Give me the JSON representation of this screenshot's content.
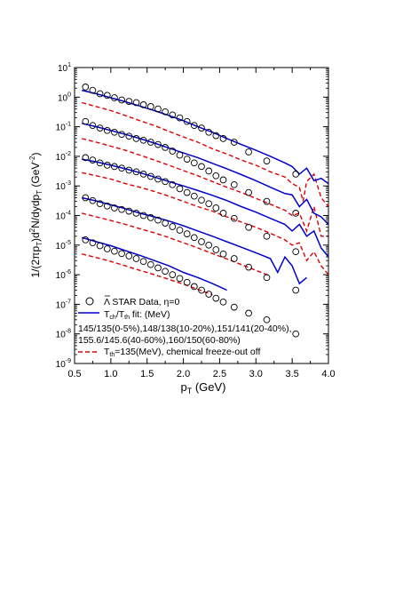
{
  "chart_data": {
    "type": "line",
    "xlabel": "p",
    "xlabel_sub": "T",
    "xlabel_unit": " (GeV)",
    "ylabel": "1/(2πp_T)d²N/dydp_T (GeV⁻²)",
    "ylabel_parts": [
      "1/(2πp",
      "T",
      ")d",
      "2",
      "N/dydp",
      "T",
      " (GeV",
      "-2",
      ")"
    ],
    "xlim": [
      0.5,
      4.0
    ],
    "ylim_log10": [
      -9,
      1
    ],
    "xticks": [
      "0.5",
      "1.0",
      "1.5",
      "2.0",
      "2.5",
      "3.0",
      "3.5",
      "4.0"
    ],
    "yticks": [
      {
        "base": "10",
        "exp": "1"
      },
      {
        "base": "10",
        "exp": "0"
      },
      {
        "base": "10",
        "exp": "-1"
      },
      {
        "base": "10",
        "exp": "-2"
      },
      {
        "base": "10",
        "exp": "-3"
      },
      {
        "base": "10",
        "exp": "-4"
      },
      {
        "base": "10",
        "exp": "-5"
      },
      {
        "base": "10",
        "exp": "-6"
      },
      {
        "base": "10",
        "exp": "-7"
      },
      {
        "base": "10",
        "exp": "-8"
      },
      {
        "base": "10",
        "exp": "-9"
      }
    ],
    "legend": {
      "data_label": "Λ̄ STAR Data, η=0",
      "data_label_main": "Λ",
      "data_label_rest": " STAR Data, η=0",
      "fit_label_pre": "T",
      "fit_sub1": "ch",
      "fit_mid": "/T",
      "fit_sub2": "th",
      "fit_post": " fit: (MeV)",
      "fit_line1": "145/135(0-5%),148/138(10-20%),151/141(20-40%),",
      "fit_line2": "155.6/145.6(40-60%),160/150(60-80%)",
      "dash_pre": "T",
      "dash_sub": "th",
      "dash_post": "=135(MeV), chemical freeze-out off"
    },
    "colors": {
      "data": "#000000",
      "fit": "#0000cc",
      "dashed": "#e00000"
    },
    "data_x": [
      0.65,
      0.75,
      0.85,
      0.95,
      1.05,
      1.15,
      1.25,
      1.35,
      1.45,
      1.55,
      1.65,
      1.75,
      1.85,
      1.95,
      2.05,
      2.15,
      2.25,
      2.35,
      2.45,
      2.55,
      2.7,
      2.9,
      3.15,
      3.55
    ],
    "series": [
      {
        "centrality": "0-5%",
        "data": [
          2.2,
          1.7,
          1.3,
          1.15,
          0.95,
          0.8,
          0.72,
          0.65,
          0.55,
          0.48,
          0.4,
          0.32,
          0.25,
          0.2,
          0.15,
          0.11,
          0.09,
          0.065,
          0.05,
          0.04,
          0.03,
          0.014,
          0.007,
          0.0025
        ],
        "fit_x": [
          0.6,
          0.8,
          1.0,
          1.2,
          1.4,
          1.6,
          1.8,
          2.0,
          2.2,
          2.4,
          2.6,
          2.8,
          3.0,
          3.2,
          3.4,
          3.5,
          3.6,
          3.7,
          3.8,
          3.9,
          4.0
        ],
        "fit": [
          1.7,
          1.3,
          0.95,
          0.7,
          0.5,
          0.35,
          0.24,
          0.16,
          0.1,
          0.065,
          0.04,
          0.025,
          0.016,
          0.01,
          0.006,
          0.0045,
          0.0025,
          0.004,
          0.0015,
          0.0018,
          0.0012
        ],
        "dash_x": [
          0.6,
          0.8,
          1.0,
          1.2,
          1.4,
          1.6,
          1.8,
          2.0,
          2.2,
          2.4,
          2.6,
          2.8,
          3.0,
          3.2,
          3.4,
          3.5,
          3.6,
          3.65,
          3.7,
          3.8,
          3.9,
          4.0
        ],
        "dash": [
          0.65,
          0.48,
          0.35,
          0.24,
          0.16,
          0.11,
          0.07,
          0.045,
          0.03,
          0.018,
          0.012,
          0.0075,
          0.005,
          0.003,
          0.002,
          0.0012,
          0.0009,
          0.0003,
          0.0014,
          0.0025,
          0.0004,
          0.0002
        ]
      },
      {
        "centrality": "10-20%",
        "data": [
          0.15,
          0.11,
          0.09,
          0.075,
          0.065,
          0.055,
          0.048,
          0.04,
          0.035,
          0.03,
          0.025,
          0.02,
          0.015,
          0.011,
          0.008,
          0.006,
          0.0045,
          0.0032,
          0.0022,
          0.0016,
          0.0011,
          0.0006,
          0.0003,
          0.00012
        ],
        "fit_x": [
          0.6,
          0.8,
          1.0,
          1.2,
          1.4,
          1.6,
          1.8,
          2.0,
          2.2,
          2.4,
          2.6,
          2.8,
          3.0,
          3.2,
          3.4,
          3.5,
          3.6,
          3.7,
          3.8,
          3.9,
          4.0
        ],
        "fit": [
          0.13,
          0.1,
          0.075,
          0.055,
          0.04,
          0.028,
          0.019,
          0.013,
          0.009,
          0.0058,
          0.0038,
          0.0024,
          0.0015,
          0.0009,
          0.00055,
          0.0005,
          0.0002,
          0.00035,
          0.00012,
          9e-05,
          5e-05
        ],
        "dash_x": [
          0.6,
          0.8,
          1.0,
          1.2,
          1.4,
          1.6,
          1.8,
          2.0,
          2.2,
          2.4,
          2.6,
          2.8,
          3.0,
          3.2,
          3.4,
          3.5,
          3.6,
          3.7,
          3.8,
          3.9,
          4.0
        ],
        "dash": [
          0.04,
          0.03,
          0.022,
          0.016,
          0.011,
          0.0075,
          0.005,
          0.0033,
          0.0022,
          0.0014,
          0.0009,
          0.0006,
          0.00038,
          0.00024,
          0.00015,
          0.0001,
          0.00012,
          3e-05,
          0.0002,
          2e-05,
          2e-05
        ]
      },
      {
        "centrality": "20-40%",
        "data": [
          0.009,
          0.0075,
          0.006,
          0.005,
          0.0045,
          0.004,
          0.0034,
          0.003,
          0.0025,
          0.0021,
          0.0017,
          0.0014,
          0.0011,
          0.0008,
          0.0006,
          0.00045,
          0.00033,
          0.00025,
          0.00018,
          0.00012,
          8e-05,
          4e-05,
          2e-05,
          6e-06
        ],
        "fit_x": [
          0.6,
          0.8,
          1.0,
          1.2,
          1.4,
          1.6,
          1.8,
          2.0,
          2.2,
          2.4,
          2.6,
          2.8,
          3.0,
          3.2,
          3.4,
          3.5,
          3.6,
          3.7,
          3.8,
          3.9,
          4.0
        ],
        "fit": [
          0.008,
          0.0065,
          0.005,
          0.0038,
          0.0028,
          0.002,
          0.0014,
          0.001,
          0.0007,
          0.00048,
          0.00032,
          0.0002,
          0.00013,
          8e-05,
          5e-05,
          3e-05,
          5e-05,
          2e-05,
          3e-05,
          8e-06,
          4e-06
        ],
        "dash_x": [
          0.6,
          0.8,
          1.0,
          1.2,
          1.4,
          1.6,
          1.8,
          2.0,
          2.2,
          2.4,
          2.6,
          2.8,
          3.0,
          3.2,
          3.4,
          3.5,
          3.6,
          3.7,
          3.8,
          3.9,
          4.0
        ],
        "dash": [
          0.0028,
          0.0022,
          0.0017,
          0.0012,
          0.0009,
          0.00065,
          0.00045,
          0.0003,
          0.0002,
          0.00014,
          9e-05,
          6e-05,
          4e-05,
          2.5e-05,
          1.5e-05,
          1e-05,
          1.2e-05,
          3e-06,
          6e-06,
          2e-06,
          1e-06
        ]
      },
      {
        "centrality": "40-60%",
        "data": [
          0.0004,
          0.00032,
          0.00025,
          0.00021,
          0.00018,
          0.00016,
          0.00014,
          0.00012,
          0.0001,
          8.5e-05,
          7e-05,
          5.5e-05,
          4.2e-05,
          3.2e-05,
          2.4e-05,
          1.8e-05,
          1.3e-05,
          1e-05,
          7e-06,
          5e-06,
          3.5e-06,
          1.8e-06,
          8e-07,
          3e-07
        ],
        "fit_x": [
          0.6,
          0.8,
          1.0,
          1.2,
          1.4,
          1.6,
          1.8,
          2.0,
          2.2,
          2.4,
          2.6,
          2.8,
          3.0,
          3.2,
          3.3,
          3.4,
          3.5,
          3.6,
          3.7
        ],
        "fit": [
          0.0004,
          0.00031,
          0.00023,
          0.00017,
          0.00012,
          9e-05,
          6.5e-05,
          4.5e-05,
          3e-05,
          2e-05,
          1.3e-05,
          8.5e-06,
          5.5e-06,
          3.5e-06,
          1.2e-06,
          4e-06,
          2e-06,
          5e-07,
          8e-07
        ],
        "dash_x": [
          0.6,
          0.8,
          1.0,
          1.2,
          1.4,
          1.6,
          1.8,
          2.0,
          2.2,
          2.4,
          2.6,
          2.8,
          3.0,
          3.2
        ],
        "dash": [
          0.00012,
          9e-05,
          6.8e-05,
          5e-05,
          3.6e-05,
          2.6e-05,
          1.8e-05,
          1.2e-05,
          8e-06,
          5.2e-06,
          3.4e-06,
          2.2e-06,
          1.4e-06,
          9e-07
        ]
      },
      {
        "centrality": "60-80%",
        "data": [
          1.5e-05,
          1.2e-05,
          9.5e-06,
          7.5e-06,
          6.2e-06,
          5.2e-06,
          4.3e-06,
          3.5e-06,
          2.8e-06,
          2.2e-06,
          1.7e-06,
          1.3e-06,
          1e-06,
          7.5e-07,
          5.5e-07,
          4e-07,
          3e-07,
          2.2e-07,
          1.6e-07,
          1.2e-07,
          8e-08,
          5e-08,
          3e-08,
          1e-08
        ],
        "fit_x": [
          0.6,
          0.8,
          1.0,
          1.2,
          1.4,
          1.6,
          1.8,
          2.0,
          2.2,
          2.4,
          2.6
        ],
        "fit": [
          1.8e-05,
          1.3e-05,
          9.5e-06,
          6.5e-06,
          4.5e-06,
          3e-06,
          2e-06,
          1.2e-06,
          8e-07,
          5e-07,
          3e-07
        ],
        "dash_x": [
          0.6,
          0.8,
          1.0,
          1.2,
          1.4,
          1.6,
          1.8,
          2.0,
          2.2,
          2.4
        ],
        "dash": [
          5e-06,
          3.8e-06,
          2.8e-06,
          2e-06,
          1.4e-06,
          1e-06,
          7e-07,
          4.8e-07,
          3.2e-07,
          2.1e-07
        ]
      }
    ]
  }
}
